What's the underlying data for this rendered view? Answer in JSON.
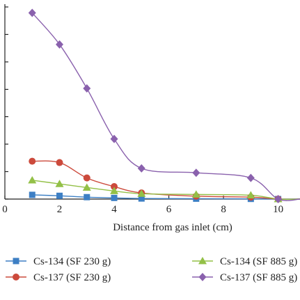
{
  "chart_data": {
    "type": "line",
    "title": "",
    "xlabel": "Distance from gas inlet (cm)",
    "ylabel": "",
    "xlim": [
      0,
      10.8
    ],
    "ylim": [
      0,
      100
    ],
    "x_ticks": [
      "0",
      "2",
      "4",
      "6",
      "8",
      "10"
    ],
    "x_tick_values": [
      0,
      2,
      4,
      6,
      8,
      10
    ],
    "y_tick_values": [
      0,
      14.3,
      28.6,
      42.9,
      57.1,
      71.4,
      85.7,
      100
    ],
    "grid": false,
    "legend_position": "bottom",
    "series": [
      {
        "name": "Cs-134 (SF 230 g)",
        "color": "#3d7fc4",
        "marker": "square",
        "x": [
          1,
          2,
          3,
          4,
          5,
          7,
          9,
          10
        ],
        "y": [
          2.2,
          1.7,
          1.0,
          0.6,
          0.3,
          0.2,
          0.1,
          0.0
        ]
      },
      {
        "name": "Cs-137 (SF 230 g)",
        "color": "#cc4a3c",
        "marker": "circle",
        "x": [
          1,
          2,
          3,
          4,
          5,
          7,
          9,
          10
        ],
        "y": [
          19.7,
          19.0,
          11.0,
          6.5,
          3.2,
          1.5,
          1.0,
          0.0
        ]
      },
      {
        "name": "Cs-134 (SF 885 g)",
        "color": "#93c047",
        "marker": "triangle",
        "x": [
          1,
          2,
          3,
          4,
          5,
          7,
          9,
          10
        ],
        "y": [
          9.8,
          7.9,
          6.0,
          4.2,
          2.8,
          2.4,
          2.0,
          0.0
        ]
      },
      {
        "name": "Cs-137 (SF 885 g)",
        "color": "#8a61ad",
        "marker": "diamond",
        "x": [
          1,
          2,
          3,
          4,
          5,
          7,
          9,
          10
        ],
        "y": [
          96.9,
          80.5,
          57.6,
          31.3,
          16.0,
          13.7,
          11.0,
          0.0
        ]
      }
    ]
  }
}
